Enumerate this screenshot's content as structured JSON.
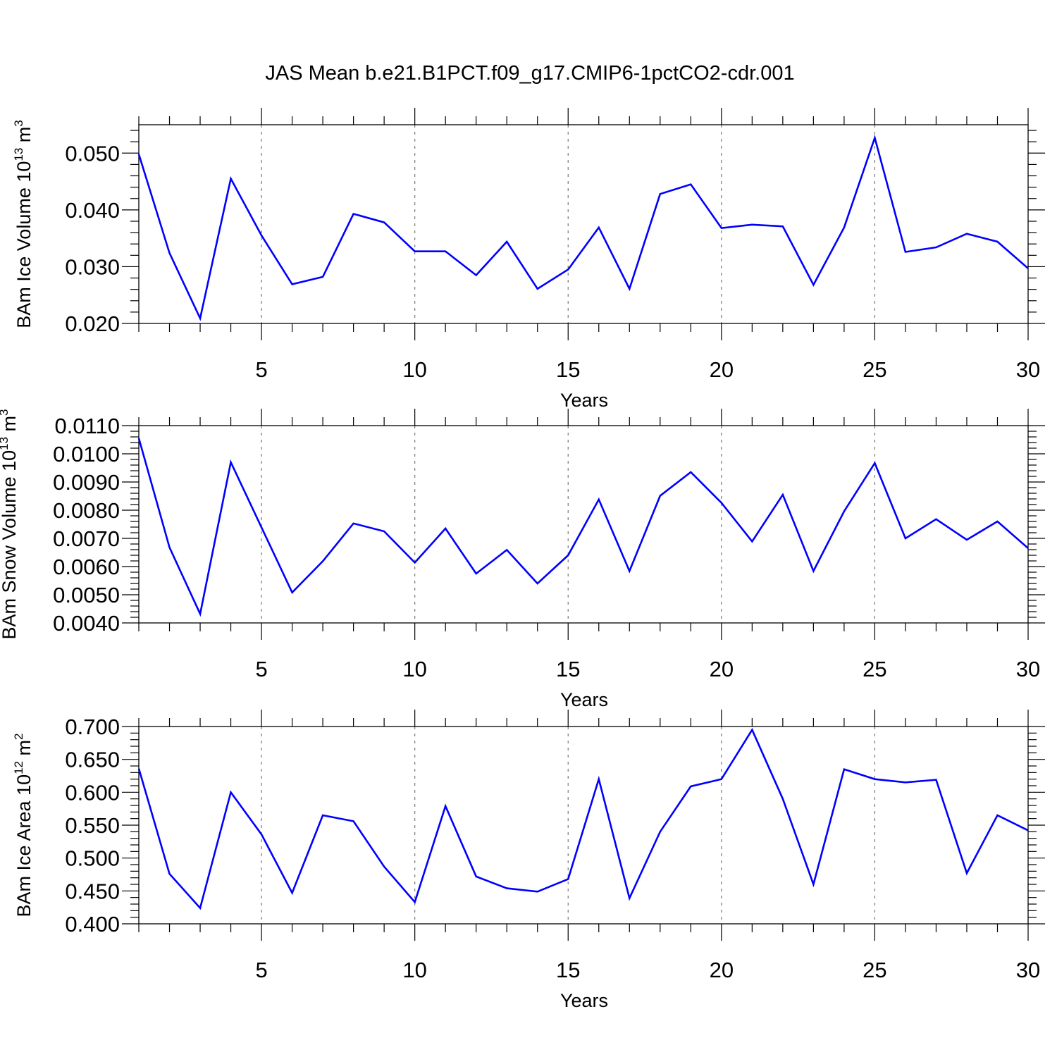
{
  "figure": {
    "title": "JAS Mean b.e21.B1PCT.f09_g17.CMIP6-1pctCO2-cdr.001"
  },
  "chart_data": [
    {
      "type": "line",
      "xlabel": "Years",
      "ylabel": {
        "prefix": "BAm Ice Volume 10",
        "exponent": "13",
        "unit": " m",
        "unit_power": "3"
      },
      "xlim": [
        1,
        30
      ],
      "ylim": [
        0.02,
        0.055
      ],
      "x_ticks": [
        5,
        10,
        15,
        20,
        25,
        30
      ],
      "x_tick_labels": [
        "5",
        "10",
        "15",
        "20",
        "25",
        "30"
      ],
      "y_ticks": [
        0.02,
        0.03,
        0.04,
        0.05
      ],
      "y_tick_labels": [
        "0.020",
        "0.030",
        "0.040",
        "0.050"
      ],
      "grid": "vertical dashed at major x ticks",
      "x": [
        1,
        2,
        3,
        4,
        5,
        6,
        7,
        8,
        9,
        10,
        11,
        12,
        13,
        14,
        15,
        16,
        17,
        18,
        19,
        20,
        21,
        22,
        23,
        24,
        25,
        26,
        27,
        28,
        29,
        30
      ],
      "series": [
        {
          "color": "#0000ff",
          "values": [
            0.0498,
            0.0324,
            0.0209,
            0.0455,
            0.0355,
            0.0269,
            0.0282,
            0.0393,
            0.0378,
            0.0327,
            0.0327,
            0.0285,
            0.0344,
            0.0261,
            0.0295,
            0.0369,
            0.0261,
            0.0428,
            0.0445,
            0.0368,
            0.0374,
            0.0371,
            0.0268,
            0.0369,
            0.0527,
            0.0326,
            0.0334,
            0.0358,
            0.0344,
            0.0297
          ]
        }
      ]
    },
    {
      "type": "line",
      "xlabel": "Years",
      "ylabel": {
        "prefix": "BAm Snow Volume 10",
        "exponent": "13",
        "unit": " m",
        "unit_power": "3"
      },
      "xlim": [
        1,
        30
      ],
      "ylim": [
        0.004,
        0.011
      ],
      "x_ticks": [
        5,
        10,
        15,
        20,
        25,
        30
      ],
      "x_tick_labels": [
        "5",
        "10",
        "15",
        "20",
        "25",
        "30"
      ],
      "y_ticks": [
        0.004,
        0.005,
        0.006,
        0.007,
        0.008,
        0.009,
        0.01,
        0.011
      ],
      "y_tick_labels": [
        "0.0040",
        "0.0050",
        "0.0060",
        "0.0070",
        "0.0080",
        "0.0090",
        "0.0100",
        "0.0110"
      ],
      "grid": "vertical dashed at major x ticks",
      "x": [
        1,
        2,
        3,
        4,
        5,
        6,
        7,
        8,
        9,
        10,
        11,
        12,
        13,
        14,
        15,
        16,
        17,
        18,
        19,
        20,
        21,
        22,
        23,
        24,
        25,
        26,
        27,
        28,
        29,
        30
      ],
      "series": [
        {
          "color": "#0000ff",
          "values": [
            0.01055,
            0.00668,
            0.00432,
            0.0097,
            0.00739,
            0.00508,
            0.00619,
            0.00753,
            0.00725,
            0.00614,
            0.00735,
            0.00575,
            0.00659,
            0.0054,
            0.0064,
            0.00838,
            0.00584,
            0.00851,
            0.00935,
            0.00826,
            0.00689,
            0.00855,
            0.00584,
            0.00796,
            0.00967,
            0.007,
            0.00768,
            0.00695,
            0.0076,
            0.00665
          ]
        }
      ]
    },
    {
      "type": "line",
      "xlabel": "Years",
      "ylabel": {
        "prefix": "BAm Ice Area 10",
        "exponent": "12",
        "unit": " m",
        "unit_power": "2"
      },
      "xlim": [
        1,
        30
      ],
      "ylim": [
        0.4,
        0.7
      ],
      "x_ticks": [
        5,
        10,
        15,
        20,
        25,
        30
      ],
      "x_tick_labels": [
        "5",
        "10",
        "15",
        "20",
        "25",
        "30"
      ],
      "y_ticks": [
        0.4,
        0.45,
        0.5,
        0.55,
        0.6,
        0.65,
        0.7
      ],
      "y_tick_labels": [
        "0.400",
        "0.450",
        "0.500",
        "0.550",
        "0.600",
        "0.650",
        "0.700"
      ],
      "grid": "vertical dashed at major x ticks",
      "x": [
        1,
        2,
        3,
        4,
        5,
        6,
        7,
        8,
        9,
        10,
        11,
        12,
        13,
        14,
        15,
        16,
        17,
        18,
        19,
        20,
        21,
        22,
        23,
        24,
        25,
        26,
        27,
        28,
        29,
        30
      ],
      "series": [
        {
          "color": "#0000ff",
          "values": [
            0.636,
            0.476,
            0.424,
            0.6,
            0.536,
            0.447,
            0.565,
            0.556,
            0.487,
            0.433,
            0.579,
            0.472,
            0.454,
            0.449,
            0.468,
            0.62,
            0.439,
            0.54,
            0.609,
            0.62,
            0.695,
            0.59,
            0.46,
            0.635,
            0.62,
            0.615,
            0.619,
            0.477,
            0.565,
            0.542
          ]
        }
      ]
    }
  ]
}
